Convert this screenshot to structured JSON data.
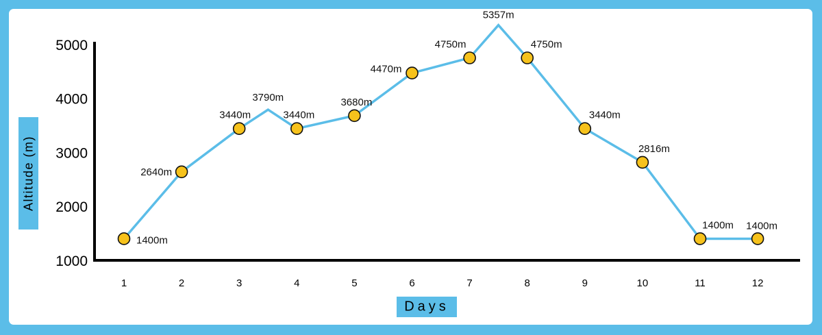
{
  "chart_data": {
    "type": "line",
    "title": "",
    "xlabel": "Days",
    "ylabel": "Altitude (m)",
    "ylim": [
      1000,
      5000
    ],
    "y_ticks": [
      "1000",
      "2000",
      "3000",
      "4000",
      "5000"
    ],
    "x_ticks": [
      "1",
      "2",
      "3",
      "4",
      "5",
      "6",
      "7",
      "8",
      "9",
      "10",
      "11",
      "12"
    ],
    "series": [
      {
        "name": "Altitude",
        "color": "#5bbde8",
        "marker_color": "#f6c21c",
        "points": [
          {
            "x": 1,
            "y": 1400,
            "label": "1400m",
            "marker": true
          },
          {
            "x": 2,
            "y": 2640,
            "label": "2640m",
            "marker": true
          },
          {
            "x": 3,
            "y": 3440,
            "label": "3440m",
            "marker": true
          },
          {
            "x": 3.5,
            "y": 3790,
            "label": "3790m",
            "marker": false
          },
          {
            "x": 4,
            "y": 3440,
            "label": "3440m",
            "marker": true
          },
          {
            "x": 5,
            "y": 3680,
            "label": "3680m",
            "marker": true
          },
          {
            "x": 6,
            "y": 4470,
            "label": "4470m",
            "marker": true
          },
          {
            "x": 7,
            "y": 4750,
            "label": "4750m",
            "marker": true
          },
          {
            "x": 7.5,
            "y": 5357,
            "label": "5357m",
            "marker": false
          },
          {
            "x": 8,
            "y": 4750,
            "label": "4750m",
            "marker": true
          },
          {
            "x": 9,
            "y": 3440,
            "label": "3440m",
            "marker": true
          },
          {
            "x": 10,
            "y": 2816,
            "label": "2816m",
            "marker": true
          },
          {
            "x": 11,
            "y": 1400,
            "label": "1400m",
            "marker": true
          },
          {
            "x": 12,
            "y": 1400,
            "label": "1400m",
            "marker": true
          }
        ]
      }
    ]
  },
  "colors": {
    "background": "#5bbde8",
    "card": "#ffffff",
    "line": "#5bbde8",
    "marker": "#f6c21c",
    "axis": "#000000"
  }
}
